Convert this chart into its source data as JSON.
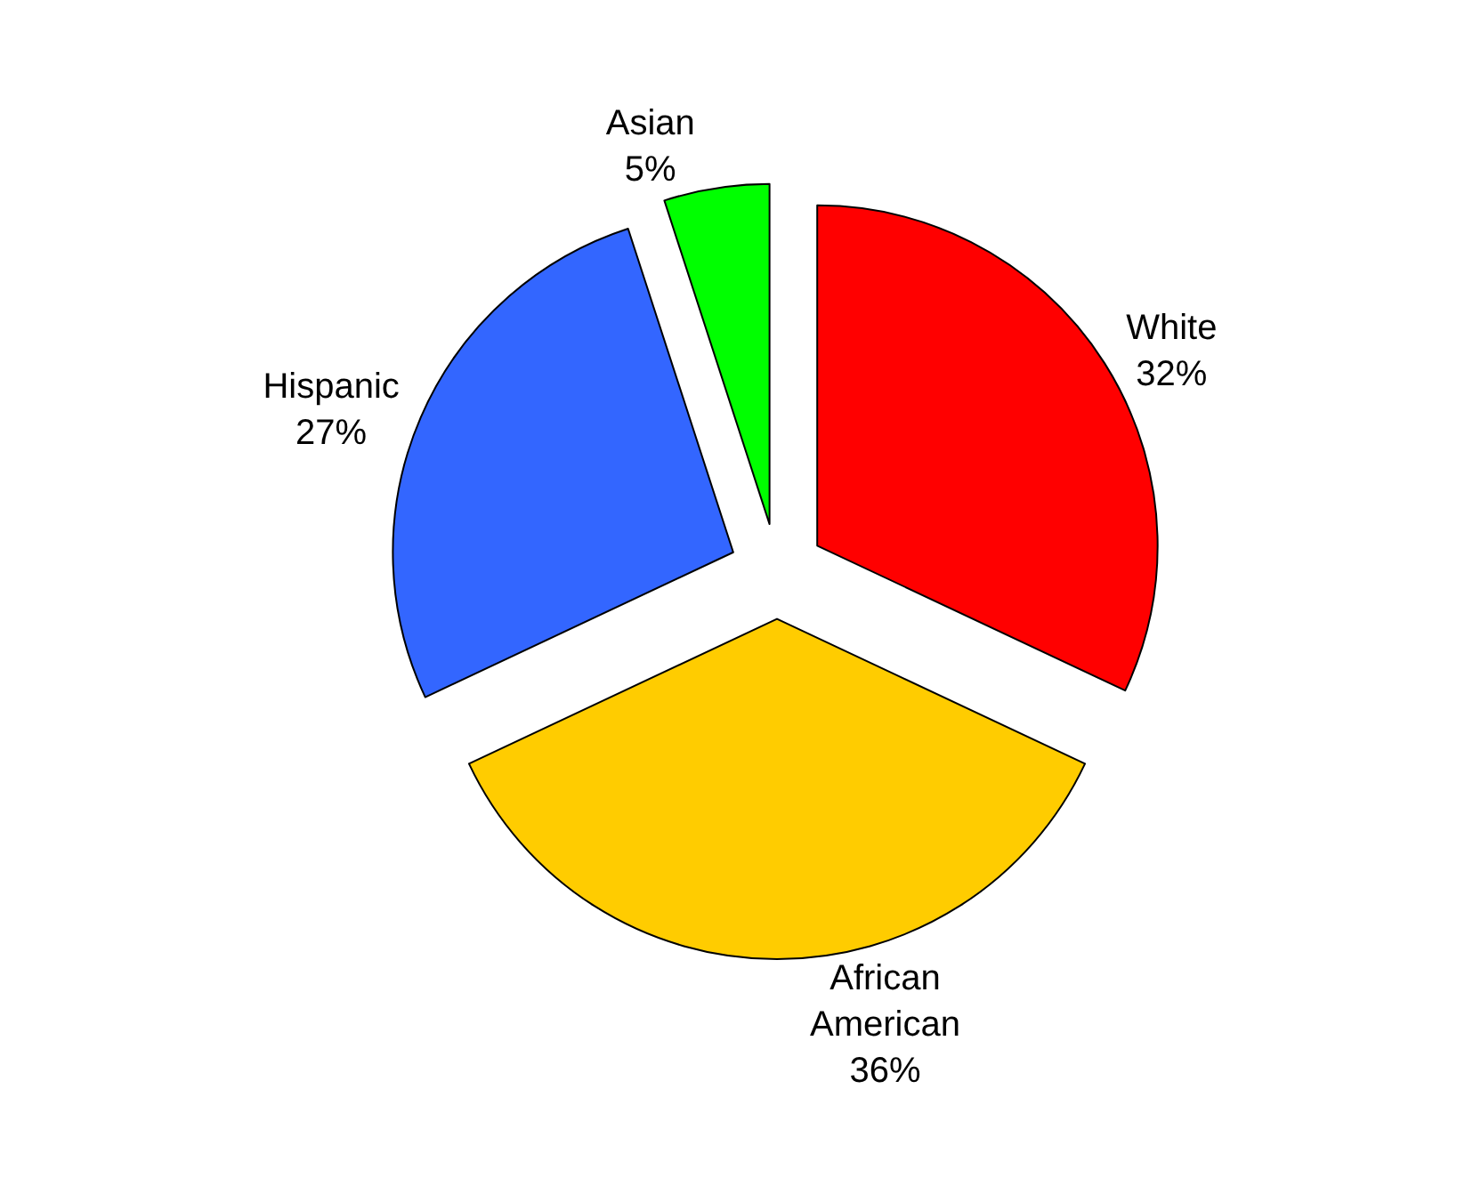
{
  "chart_data": {
    "type": "pie",
    "categories": [
      "White",
      "African American",
      "Hispanic",
      "Asian"
    ],
    "values": [
      32,
      36,
      27,
      5
    ],
    "value_labels": [
      "32%",
      "36%",
      "27%",
      "5%"
    ],
    "colors": [
      "#ff0000",
      "#ffcc00",
      "#3366ff",
      "#00ff00"
    ],
    "legend": false
  }
}
